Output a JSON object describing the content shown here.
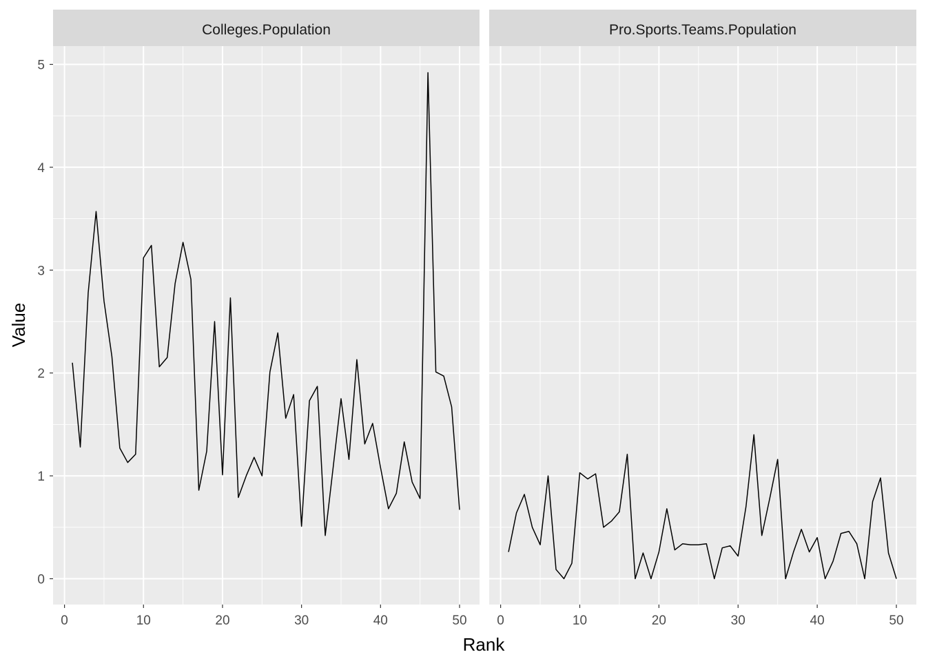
{
  "chart_data": {
    "type": "line",
    "xlabel": "Rank",
    "ylabel": "Value",
    "xlim": [
      0,
      50
    ],
    "ylim": [
      0,
      5
    ],
    "x_ticks": [
      0,
      10,
      20,
      30,
      40,
      50
    ],
    "y_ticks": [
      0,
      1,
      2,
      3,
      4,
      5
    ],
    "grid": true,
    "colors": {
      "panel_bg": "#ebebeb",
      "strip_bg": "#d9d9d9",
      "grid": "#ffffff",
      "line": "#000000"
    },
    "facets": [
      {
        "name": "Colleges.Population",
        "x": [
          1,
          2,
          3,
          4,
          5,
          6,
          7,
          8,
          9,
          10,
          11,
          12,
          13,
          14,
          15,
          16,
          17,
          18,
          19,
          20,
          21,
          22,
          23,
          24,
          25,
          26,
          27,
          28,
          29,
          30,
          31,
          32,
          33,
          34,
          35,
          36,
          37,
          38,
          39,
          40,
          41,
          42,
          43,
          44,
          45,
          46,
          47,
          48,
          49,
          50
        ],
        "values": [
          2.1,
          1.28,
          2.78,
          3.57,
          2.7,
          2.16,
          1.27,
          1.13,
          1.21,
          3.12,
          3.24,
          2.06,
          2.15,
          2.87,
          3.27,
          2.91,
          0.86,
          1.24,
          2.5,
          1.01,
          2.73,
          0.79,
          1.0,
          1.18,
          1.0,
          2.01,
          2.39,
          1.56,
          1.79,
          0.51,
          1.73,
          1.87,
          0.42,
          1.08,
          1.75,
          1.16,
          2.13,
          1.31,
          1.51,
          1.08,
          0.68,
          0.83,
          1.33,
          0.94,
          0.78,
          4.92,
          2.01,
          1.97,
          1.67,
          0.67
        ]
      },
      {
        "name": "Pro.Sports.Teams.Population",
        "x": [
          1,
          2,
          3,
          4,
          5,
          6,
          7,
          8,
          9,
          10,
          11,
          12,
          13,
          14,
          15,
          16,
          17,
          18,
          19,
          20,
          21,
          22,
          23,
          24,
          25,
          26,
          27,
          28,
          29,
          30,
          31,
          32,
          33,
          34,
          35,
          36,
          37,
          38,
          39,
          40,
          41,
          42,
          43,
          44,
          45,
          46,
          47,
          48,
          49,
          50
        ],
        "values": [
          0.26,
          0.64,
          0.82,
          0.5,
          0.33,
          1.0,
          0.09,
          0.0,
          0.15,
          1.03,
          0.97,
          1.02,
          0.5,
          0.56,
          0.65,
          1.21,
          0.0,
          0.25,
          0.0,
          0.26,
          0.68,
          0.28,
          0.34,
          0.33,
          0.33,
          0.34,
          0.0,
          0.3,
          0.32,
          0.22,
          0.7,
          1.4,
          0.42,
          0.78,
          1.16,
          0.0,
          0.26,
          0.48,
          0.26,
          0.4,
          0.0,
          0.17,
          0.44,
          0.46,
          0.34,
          0.0,
          0.75,
          0.98,
          0.25,
          0.0
        ]
      }
    ]
  }
}
